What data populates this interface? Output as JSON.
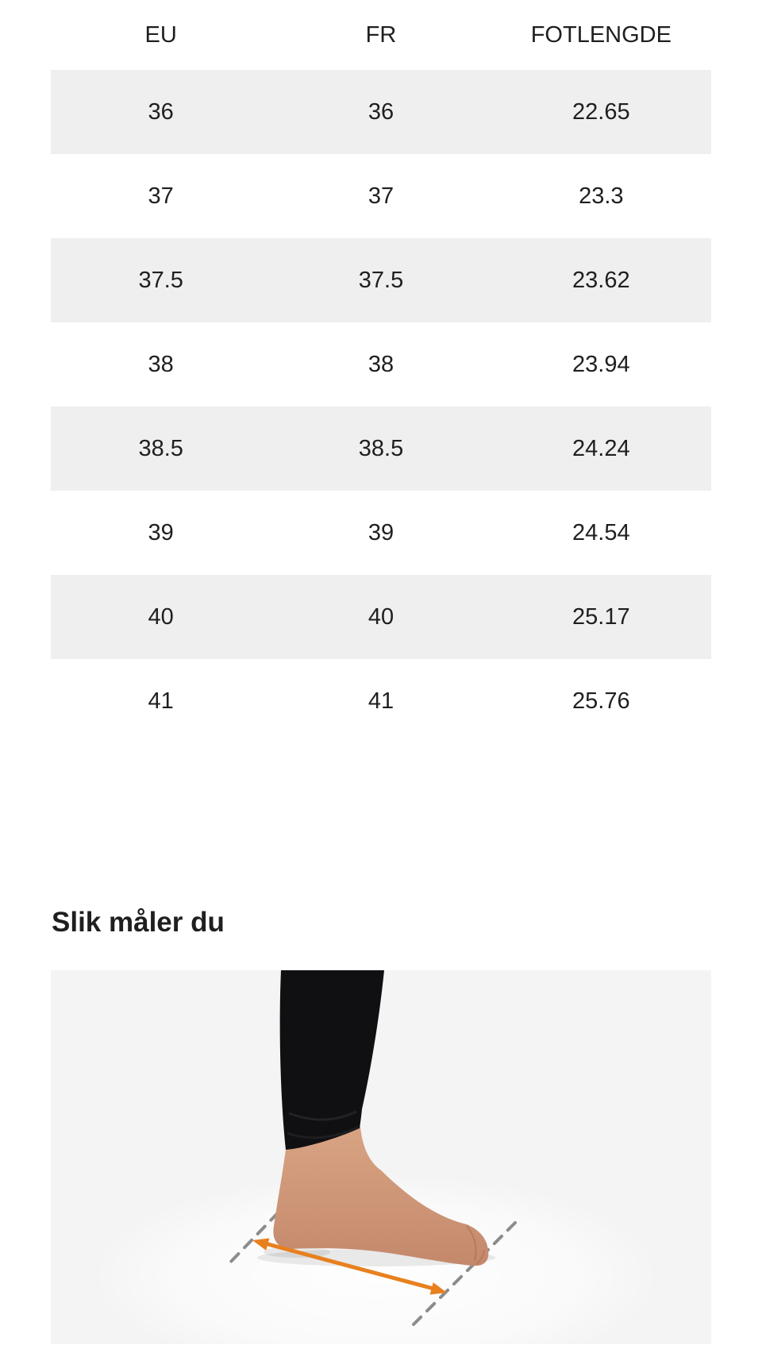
{
  "theme": {
    "text_color": "#1f1f1f",
    "zebra_row_color": "#efefef",
    "photo_background_color": "#f4f4f5"
  },
  "size_table": {
    "headers": [
      "EU",
      "FR",
      "FOTLENGDE"
    ],
    "rows": [
      [
        "36",
        "36",
        "22.65"
      ],
      [
        "37",
        "37",
        "23.3"
      ],
      [
        "37.5",
        "37.5",
        "23.62"
      ],
      [
        "38",
        "38",
        "23.94"
      ],
      [
        "38.5",
        "38.5",
        "24.24"
      ],
      [
        "39",
        "39",
        "24.54"
      ],
      [
        "40",
        "40",
        "25.17"
      ],
      [
        "41",
        "41",
        "25.76"
      ]
    ]
  },
  "measure_section": {
    "heading": "Slik måler du",
    "illustration": {
      "arrow_color": "#e8801e",
      "dashed_line_color": "#8c8c8c",
      "leggings_color": "#101013",
      "skin_color_top": "#d9a585",
      "skin_color_bottom": "#c3876a"
    }
  }
}
